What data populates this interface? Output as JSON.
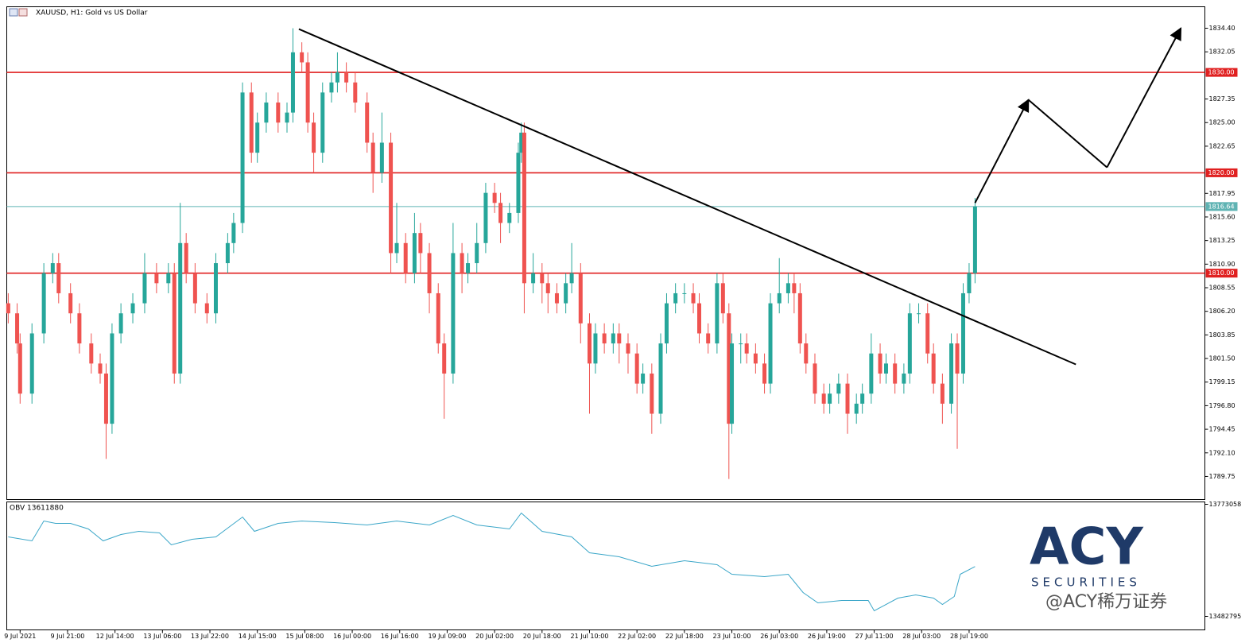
{
  "chart_data": {
    "type": "candlestick",
    "title": "XAUUSD, H1:  Gold vs US Dollar",
    "up_color": "#26a69a",
    "down_color": "#ef5350",
    "xlim": [
      -4.5,
      399.5
    ],
    "ylim": [
      1787.45,
      1836.54
    ],
    "xticks": [
      {
        "value": 0,
        "label": "9 Jul 2021"
      },
      {
        "value": 16,
        "label": "9 Jul 21:00"
      },
      {
        "value": 32,
        "label": "12 Jul 14:00"
      },
      {
        "value": 48,
        "label": "13 Jul 06:00"
      },
      {
        "value": 64,
        "label": "13 Jul 22:00"
      },
      {
        "value": 80,
        "label": "14 Jul 15:00"
      },
      {
        "value": 96,
        "label": "15 Jul 08:00"
      },
      {
        "value": 112,
        "label": "16 Jul 00:00"
      },
      {
        "value": 128,
        "label": "16 Jul 16:00"
      },
      {
        "value": 144,
        "label": "19 Jul 09:00"
      },
      {
        "value": 160,
        "label": "20 Jul 02:00"
      },
      {
        "value": 176,
        "label": "20 Jul 18:00"
      },
      {
        "value": 192,
        "label": "21 Jul 10:00"
      },
      {
        "value": 208,
        "label": "22 Jul 02:00"
      },
      {
        "value": 224,
        "label": "22 Jul 18:00"
      },
      {
        "value": 240,
        "label": "23 Jul 10:00"
      },
      {
        "value": 256,
        "label": "26 Jul 03:00"
      },
      {
        "value": 272,
        "label": "26 Jul 19:00"
      },
      {
        "value": 288,
        "label": "27 Jul 11:00"
      },
      {
        "value": 304,
        "label": "28 Jul 03:00"
      },
      {
        "value": 320,
        "label": "28 Jul 19:00"
      }
    ],
    "yticks": [
      {
        "value": 1834.4,
        "label": "1834.40"
      },
      {
        "value": 1832.05,
        "label": "1832.05"
      },
      {
        "value": 1827.35,
        "label": "1827.35"
      },
      {
        "value": 1825.0,
        "label": "1825.00"
      },
      {
        "value": 1822.65,
        "label": "1822.65"
      },
      {
        "value": 1817.95,
        "label": "1817.95"
      },
      {
        "value": 1815.6,
        "label": "1815.60"
      },
      {
        "value": 1813.25,
        "label": "1813.25"
      },
      {
        "value": 1810.9,
        "label": "1810.90"
      },
      {
        "value": 1808.55,
        "label": "1808.55"
      },
      {
        "value": 1806.2,
        "label": "1806.20"
      },
      {
        "value": 1803.85,
        "label": "1803.85"
      },
      {
        "value": 1801.5,
        "label": "1801.50"
      },
      {
        "value": 1799.15,
        "label": "1799.15"
      },
      {
        "value": 1796.8,
        "label": "1796.80"
      },
      {
        "value": 1794.45,
        "label": "1794.45"
      },
      {
        "value": 1792.1,
        "label": "1792.10"
      },
      {
        "value": 1789.75,
        "label": "1789.75"
      }
    ],
    "levels": [
      {
        "value": 1830,
        "label": "1830.00",
        "color": "#e02020"
      },
      {
        "value": 1820,
        "label": "1820.00",
        "color": "#e02020"
      },
      {
        "value": 1810,
        "label": "1810.00",
        "color": "#e02020"
      },
      {
        "value": 1816.64,
        "label": "1816.64",
        "color": "#5fb3b3"
      }
    ],
    "candles": {
      "x": [
        -4,
        -1,
        0,
        4,
        8,
        11,
        13,
        17,
        20,
        24,
        27,
        29,
        31,
        34,
        38,
        42,
        46,
        50,
        52,
        54,
        56,
        59,
        63,
        66,
        70,
        72,
        75,
        78,
        80,
        83,
        87,
        90,
        92,
        95,
        97,
        99,
        102,
        105,
        107,
        110,
        113,
        117,
        119,
        122,
        125,
        127,
        130,
        133,
        135,
        138,
        141,
        143,
        146,
        149,
        151,
        154,
        157,
        160,
        162,
        165,
        168,
        169,
        170,
        173,
        176,
        178,
        181,
        184,
        186,
        189,
        192,
        194,
        197,
        200,
        202,
        205,
        208,
        210,
        213,
        216,
        218,
        221,
        224,
        227,
        229,
        232,
        235,
        237,
        239,
        240,
        243,
        245,
        248,
        251,
        253,
        256,
        259,
        261,
        263,
        265,
        268,
        271,
        273,
        276,
        279,
        282,
        284,
        287,
        290,
        292,
        295,
        298,
        300,
        303,
        306,
        308,
        311,
        314,
        316,
        318,
        320,
        322
      ],
      "open": [
        1807,
        1806,
        1803,
        1798,
        1804,
        1810,
        1811,
        1808,
        1806,
        1803,
        1801,
        1800,
        1795,
        1804,
        1806,
        1807,
        1810,
        1809,
        1810,
        1800,
        1813,
        1810,
        1807,
        1806,
        1811,
        1813,
        1815,
        1828,
        1822,
        1825,
        1827,
        1825,
        1826,
        1832,
        1831,
        1825,
        1822,
        1828,
        1829,
        1830,
        1829,
        1827,
        1823,
        1820,
        1823,
        1812,
        1813,
        1810,
        1814,
        1812,
        1808,
        1803,
        1800,
        1812,
        1810,
        1811,
        1813,
        1818,
        1817,
        1815,
        1816,
        1822,
        1824,
        1809,
        1810,
        1809,
        1808,
        1807,
        1809,
        1810,
        1805,
        1801,
        1804,
        1803,
        1804,
        1803,
        1802,
        1799,
        1800,
        1796,
        1803,
        1807,
        1808,
        1808,
        1807,
        1804,
        1803,
        1809,
        1806,
        1795,
        1803,
        1803,
        1802,
        1801,
        1799,
        1807,
        1808,
        1809,
        1808,
        1803,
        1801,
        1798,
        1797,
        1798,
        1799,
        1796,
        1797,
        1798,
        1802,
        1800,
        1801,
        1799,
        1800,
        1806,
        1806,
        1802,
        1799,
        1797,
        1803,
        1800,
        1808,
        1810
      ],
      "high": [
        1808,
        1807,
        1804,
        1805,
        1811,
        1812,
        1812,
        1809,
        1807,
        1804,
        1802,
        1801,
        1805,
        1807,
        1808,
        1812,
        1811,
        1811,
        1811,
        1817,
        1814,
        1811,
        1808,
        1812,
        1814,
        1816,
        1829,
        1829,
        1826,
        1828,
        1828,
        1827,
        1834.4,
        1833,
        1832,
        1826,
        1829,
        1830,
        1832,
        1831,
        1830,
        1828,
        1824,
        1826,
        1824,
        1817,
        1814,
        1816,
        1815,
        1813,
        1809,
        1804,
        1815,
        1813,
        1812,
        1815,
        1819,
        1819,
        1818,
        1817,
        1823,
        1825,
        1825,
        1812,
        1811,
        1810,
        1809,
        1810,
        1813,
        1811,
        1806,
        1805,
        1805,
        1805,
        1805,
        1804,
        1803,
        1801,
        1801,
        1804,
        1808,
        1809,
        1809,
        1809,
        1808,
        1805,
        1810,
        1810,
        1807,
        1804,
        1804,
        1804,
        1803,
        1802,
        1808,
        1811.5,
        1810,
        1810,
        1809,
        1804,
        1802,
        1799,
        1799,
        1800,
        1800,
        1798,
        1799,
        1804,
        1803,
        1802,
        1802,
        1801,
        1807,
        1807,
        1807,
        1803,
        1800,
        1804,
        1804,
        1809,
        1811,
        1817.5
      ],
      "low": [
        1805,
        1802,
        1797,
        1797,
        1803,
        1809,
        1807,
        1805,
        1802,
        1800,
        1799,
        1791.5,
        1794,
        1803,
        1805,
        1806,
        1808,
        1808,
        1799,
        1799,
        1809,
        1806,
        1805,
        1805,
        1810,
        1812,
        1814,
        1821,
        1821,
        1824,
        1824,
        1824,
        1825,
        1830,
        1824,
        1820,
        1821,
        1827,
        1828,
        1828,
        1826,
        1822,
        1818,
        1819,
        1810,
        1811,
        1809,
        1809,
        1810,
        1806,
        1802,
        1795.5,
        1799,
        1808,
        1809,
        1810,
        1812,
        1816,
        1813,
        1814,
        1815,
        1821,
        1806,
        1808,
        1807,
        1806,
        1806,
        1806,
        1808,
        1803,
        1796,
        1800,
        1802,
        1802,
        1801,
        1800,
        1798,
        1798,
        1794,
        1795,
        1802,
        1806,
        1807,
        1806,
        1803,
        1802,
        1802,
        1805,
        1789.5,
        1794,
        1801,
        1801,
        1800,
        1798,
        1798,
        1806,
        1807,
        1806,
        1802,
        1800,
        1797,
        1796,
        1796,
        1797,
        1794,
        1795,
        1796,
        1797,
        1799,
        1799,
        1798,
        1798,
        1799,
        1805,
        1801,
        1798,
        1795,
        1796,
        1792.5,
        1799,
        1807,
        1809
      ],
      "close": [
        1806,
        1803,
        1798,
        1804,
        1810,
        1811,
        1808,
        1806,
        1803,
        1801,
        1800,
        1795,
        1804,
        1806,
        1807,
        1810,
        1809,
        1810,
        1800,
        1813,
        1810,
        1807,
        1806,
        1811,
        1813,
        1815,
        1828,
        1822,
        1825,
        1827,
        1825,
        1826,
        1832,
        1831,
        1825,
        1822,
        1828,
        1829,
        1830,
        1829,
        1827,
        1823,
        1820,
        1823,
        1812,
        1813,
        1810,
        1814,
        1812,
        1808,
        1803,
        1800,
        1812,
        1810,
        1811,
        1813,
        1818,
        1817,
        1815,
        1816,
        1822,
        1824,
        1809,
        1810,
        1809,
        1808,
        1807,
        1809,
        1810,
        1805,
        1801,
        1804,
        1803,
        1804,
        1803,
        1802,
        1799,
        1800,
        1796,
        1803,
        1807,
        1808,
        1808,
        1807,
        1804,
        1803,
        1809,
        1806,
        1795,
        1803,
        1803,
        1802,
        1801,
        1799,
        1807,
        1808,
        1809,
        1808,
        1803,
        1801,
        1798,
        1797,
        1798,
        1799,
        1796,
        1797,
        1798,
        1802,
        1800,
        1801,
        1799,
        1800,
        1806,
        1806,
        1802,
        1799,
        1797,
        1803,
        1800,
        1808,
        1810,
        1816.64
      ]
    },
    "trendline": {
      "x": [
        94,
        356
      ],
      "y": [
        1834.32,
        1800.91
      ],
      "color": "#000000"
    },
    "arrow_path": {
      "x": [
        322,
        340,
        366.5,
        391.4
      ],
      "y": [
        1817.0,
        1827.27,
        1820.54,
        1834.4
      ],
      "color": "#000000"
    },
    "indicator": {
      "label": "OBV 13611880",
      "color": "#3aa6c8",
      "ylim": [
        13447799,
        13779234
      ],
      "yticks": [
        13773058,
        13482795
      ],
      "x": [
        -4,
        4,
        8,
        12,
        17,
        23,
        28,
        34,
        40,
        47,
        51,
        58,
        66,
        75,
        79,
        87,
        95,
        106,
        117,
        127,
        138,
        146,
        154,
        165,
        169,
        176,
        186,
        192,
        202,
        213,
        224,
        235,
        240,
        251,
        259,
        264,
        269,
        277,
        286,
        288,
        296,
        302,
        308,
        311,
        315,
        317,
        322
      ],
      "values": [
        13688655,
        13678362,
        13729827,
        13723652,
        13723652,
        13709241,
        13678362,
        13694831,
        13703066,
        13698948,
        13668069,
        13682480,
        13688655,
        13740120,
        13703066,
        13723652,
        13729827,
        13725710,
        13719534,
        13729827,
        13719534,
        13744238,
        13719534,
        13709241,
        13750413,
        13703066,
        13688655,
        13647483,
        13637190,
        13612487,
        13626897,
        13616604,
        13591901,
        13585725,
        13591901,
        13544553,
        13517792,
        13523967,
        13523967,
        13497206,
        13530143,
        13538378,
        13530143,
        13513674,
        13534260,
        13591901,
        13611880
      ]
    },
    "logo": {
      "brand": "ACY",
      "subtitle": "SECURITIES",
      "watermark": "@ACY稀万证券"
    }
  }
}
